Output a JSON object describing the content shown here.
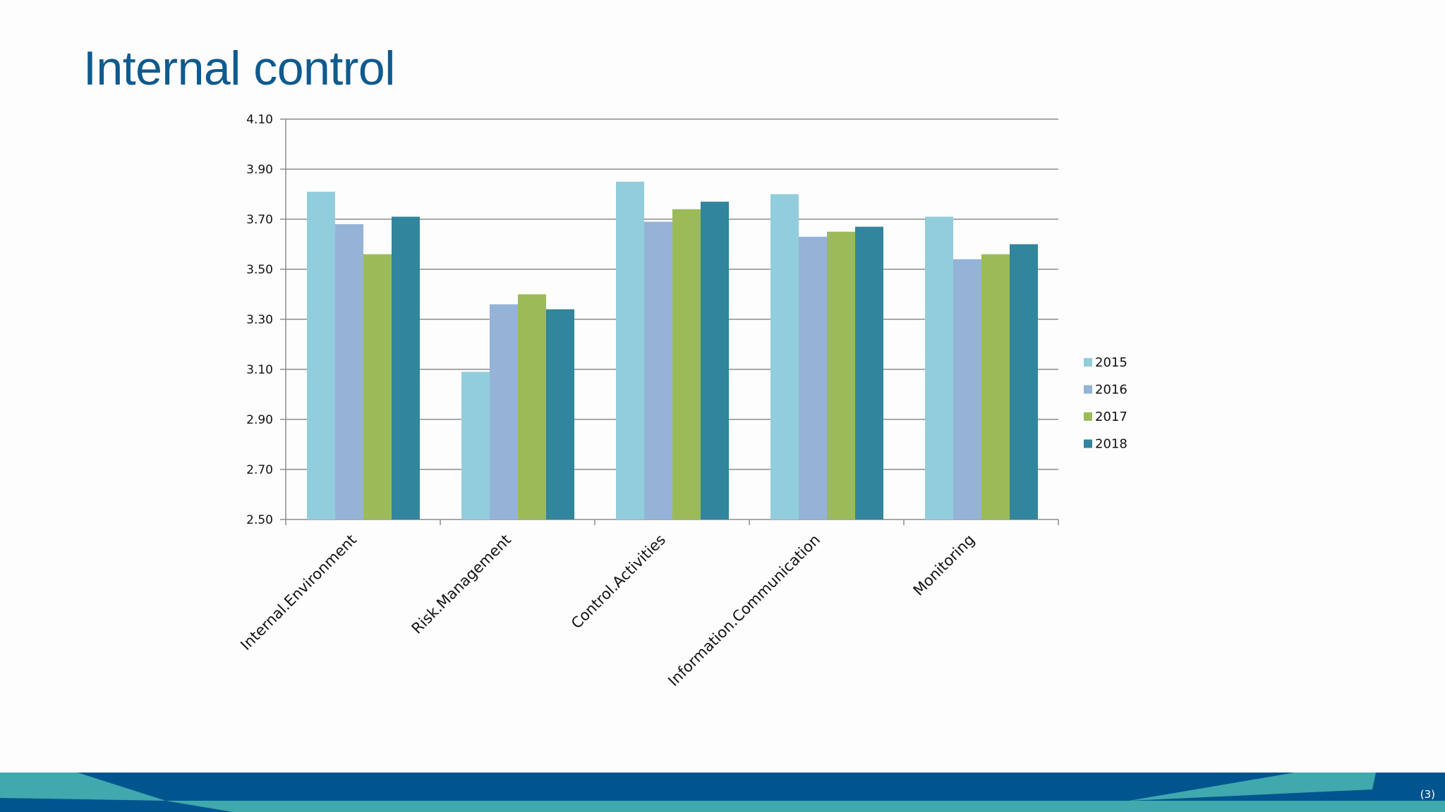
{
  "slide": {
    "title": "Internal control",
    "page_number": "(3)"
  },
  "colors": {
    "title": "#0f5a8e",
    "footer_dark": "#00558f",
    "footer_teal": "#40a9ad"
  },
  "chart_data": {
    "type": "bar",
    "title": "",
    "xlabel": "",
    "ylabel": "",
    "ylim": [
      2.5,
      4.1
    ],
    "yticks": [
      2.5,
      2.7,
      2.9,
      3.1,
      3.3,
      3.5,
      3.7,
      3.9,
      4.1
    ],
    "ytick_labels": [
      "2.50",
      "2.70",
      "2.90",
      "3.10",
      "3.30",
      "3.50",
      "3.70",
      "3.90",
      "4.10"
    ],
    "grid": true,
    "legend_position": "right",
    "categories": [
      "Internal.Environment",
      "Risk.Management",
      "Control.Activities",
      "Information.Communication",
      "Monitoring"
    ],
    "series": [
      {
        "name": "2015",
        "color": "#92cddd",
        "values": [
          3.81,
          3.09,
          3.85,
          3.8,
          3.71
        ]
      },
      {
        "name": "2016",
        "color": "#95b3d7",
        "values": [
          3.68,
          3.36,
          3.69,
          3.63,
          3.54
        ]
      },
      {
        "name": "2017",
        "color": "#9bbb59",
        "values": [
          3.56,
          3.4,
          3.74,
          3.65,
          3.56
        ]
      },
      {
        "name": "2018",
        "color": "#31859c",
        "values": [
          3.71,
          3.34,
          3.77,
          3.67,
          3.6
        ]
      }
    ]
  }
}
